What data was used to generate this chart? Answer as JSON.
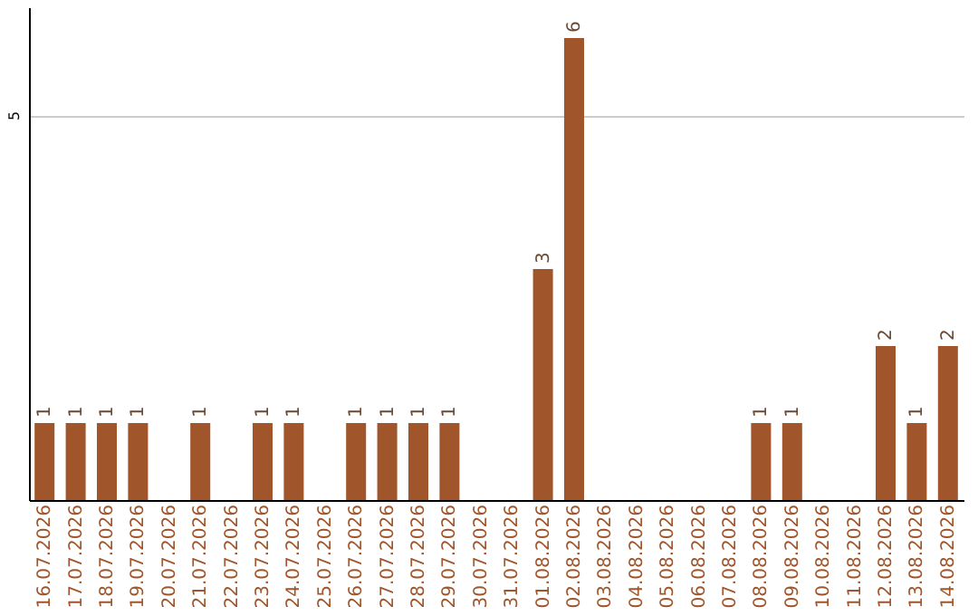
{
  "chart_data": {
    "type": "bar",
    "categories": [
      "16.07.2026",
      "17.07.2026",
      "18.07.2026",
      "19.07.2026",
      "20.07.2026",
      "21.07.2026",
      "22.07.2026",
      "23.07.2026",
      "24.07.2026",
      "25.07.2026",
      "26.07.2026",
      "27.07.2026",
      "28.07.2026",
      "29.07.2026",
      "30.07.2026",
      "31.07.2026",
      "01.08.2026",
      "02.08.2026",
      "03.08.2026",
      "04.08.2026",
      "05.08.2026",
      "06.08.2026",
      "07.08.2026",
      "08.08.2026",
      "09.08.2026",
      "10.08.2026",
      "11.08.2026",
      "12.08.2026",
      "13.08.2026",
      "14.08.2026"
    ],
    "values": [
      1,
      1,
      1,
      1,
      0,
      1,
      0,
      1,
      1,
      0,
      1,
      1,
      1,
      1,
      0,
      0,
      3,
      6,
      0,
      0,
      0,
      0,
      0,
      1,
      1,
      0,
      0,
      2,
      1,
      2
    ],
    "value_labels": [
      "1",
      "1",
      "1",
      "1",
      null,
      "1",
      null,
      "1",
      "1",
      null,
      "1",
      "1",
      "1",
      "1",
      null,
      null,
      "3",
      "6",
      null,
      null,
      null,
      null,
      null,
      "1",
      "1",
      null,
      null,
      "2",
      "1",
      "2"
    ],
    "color": "#a0552a",
    "ylim": [
      0,
      6.4
    ],
    "yticks": [
      5
    ],
    "grid": "y"
  }
}
